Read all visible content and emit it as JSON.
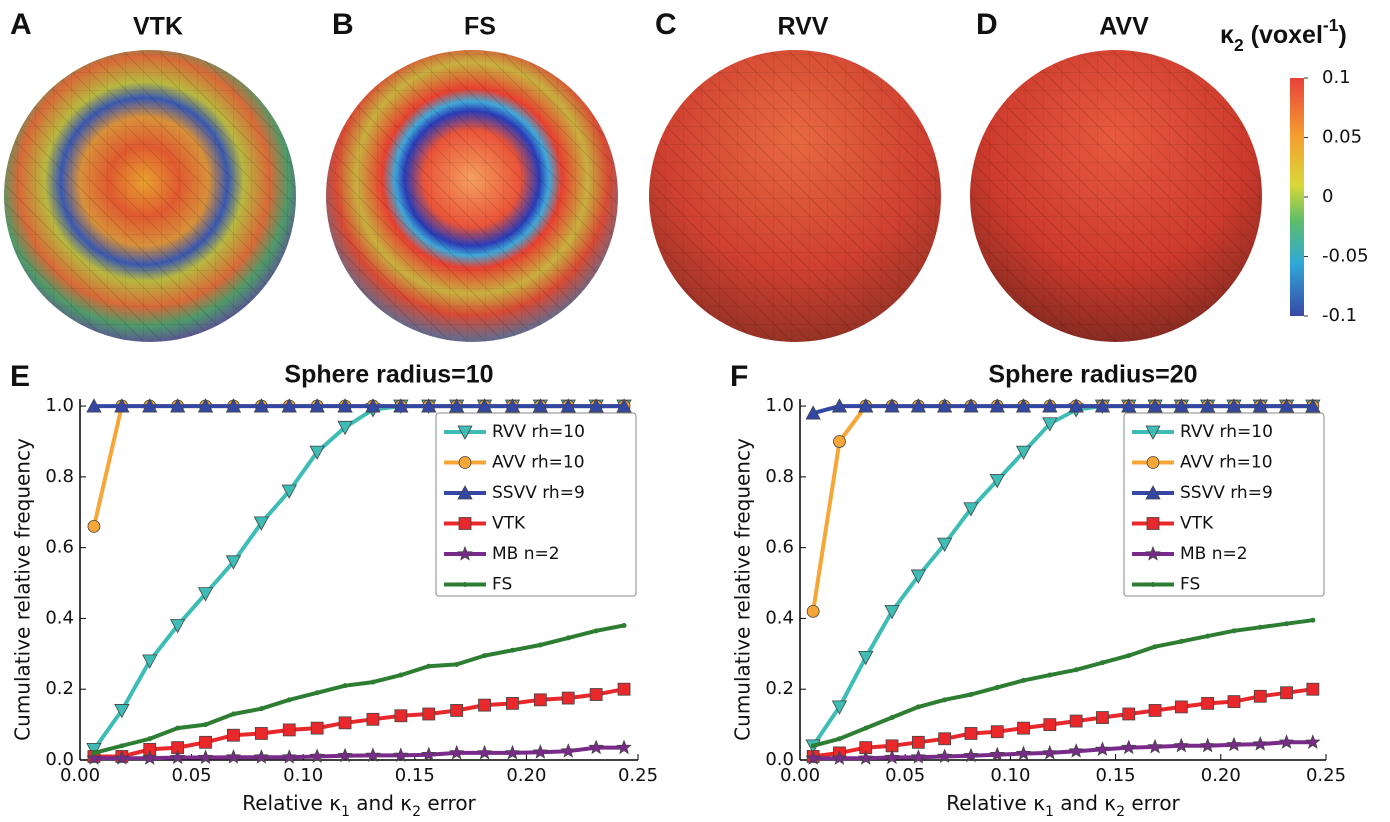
{
  "spheres": [
    {
      "letter": "A",
      "label": "VTK"
    },
    {
      "letter": "B",
      "label": "FS"
    },
    {
      "letter": "C",
      "label": "RVV"
    },
    {
      "letter": "D",
      "label": "AVV"
    }
  ],
  "colorbar": {
    "title": [
      {
        "text": "κ"
      },
      {
        "sub": "2"
      },
      {
        "text": " (voxel"
      },
      {
        "sup": "-1"
      },
      {
        "text": ")"
      }
    ],
    "lim": [
      -0.1,
      0.1
    ],
    "ticks": [
      0.1,
      0.05,
      0,
      -0.05,
      -0.1
    ]
  },
  "chart_data": [
    {
      "type": "line",
      "panel": "E",
      "title": "Sphere radius=10",
      "xlabel": [
        {
          "text": "Relative κ"
        },
        {
          "sub": "1"
        },
        {
          "text": " and κ"
        },
        {
          "sub": "2"
        },
        {
          "text": " error"
        }
      ],
      "ylabel": "Cumulative relative frequency",
      "xlim": [
        0,
        0.25
      ],
      "ylim": [
        0,
        1.02
      ],
      "xticks": [
        {
          "value": 0,
          "label": "0.00"
        },
        {
          "value": 0.05,
          "label": "0.05"
        },
        {
          "value": 0.1,
          "label": "0.10"
        },
        {
          "value": 0.15,
          "label": "0.15"
        },
        {
          "value": 0.2,
          "label": "0.20"
        },
        {
          "value": 0.25,
          "label": "0.25"
        }
      ],
      "yticks": [
        {
          "value": 0,
          "label": "0.0"
        },
        {
          "value": 0.2,
          "label": "0.2"
        },
        {
          "value": 0.4,
          "label": "0.4"
        },
        {
          "value": 0.6,
          "label": "0.6"
        },
        {
          "value": 0.8,
          "label": "0.8"
        },
        {
          "value": 1,
          "label": "1.0"
        }
      ],
      "legend": "upper right",
      "x": [
        0.00625,
        0.01875,
        0.03125,
        0.04375,
        0.05625,
        0.06875,
        0.08125,
        0.09375,
        0.10625,
        0.11875,
        0.13125,
        0.14375,
        0.15625,
        0.16875,
        0.18125,
        0.19375,
        0.20625,
        0.21875,
        0.23125,
        0.24375
      ],
      "series": [
        {
          "name": "RVV rh=10",
          "color": "#3dbdb5",
          "marker": "triangle-down",
          "values": [
            0.03,
            0.14,
            0.28,
            0.38,
            0.47,
            0.56,
            0.67,
            0.76,
            0.87,
            0.94,
            0.99,
            1,
            1,
            1,
            1,
            1,
            1,
            1,
            1,
            1
          ]
        },
        {
          "name": "AVV rh=10",
          "color": "#f5a636",
          "marker": "circle",
          "values": [
            0.66,
            1,
            1,
            1,
            1,
            1,
            1,
            1,
            1,
            1,
            1,
            1,
            1,
            1,
            1,
            1,
            1,
            1,
            1,
            1
          ]
        },
        {
          "name": "SSVV rh=9",
          "color": "#3348a5",
          "marker": "triangle-up",
          "values": [
            1,
            1,
            1,
            1,
            1,
            1,
            1,
            1,
            1,
            1,
            1,
            1,
            1,
            1,
            1,
            1,
            1,
            1,
            1,
            1
          ]
        },
        {
          "name": "VTK",
          "color": "#e8282b",
          "marker": "square",
          "values": [
            0.01,
            0.01,
            0.03,
            0.035,
            0.05,
            0.07,
            0.075,
            0.085,
            0.09,
            0.105,
            0.115,
            0.125,
            0.13,
            0.14,
            0.155,
            0.16,
            0.17,
            0.175,
            0.185,
            0.2
          ]
        },
        {
          "name": "MB n=2",
          "color": "#7a2a8a",
          "marker": "star",
          "values": [
            0.005,
            0.005,
            0.005,
            0.007,
            0.007,
            0.008,
            0.008,
            0.008,
            0.01,
            0.012,
            0.013,
            0.013,
            0.015,
            0.02,
            0.02,
            0.02,
            0.022,
            0.025,
            0.035,
            0.035
          ]
        },
        {
          "name": "FS",
          "color": "#2d7d32",
          "marker": "dot",
          "values": [
            0.02,
            0.04,
            0.06,
            0.09,
            0.1,
            0.13,
            0.145,
            0.17,
            0.19,
            0.21,
            0.22,
            0.24,
            0.265,
            0.27,
            0.295,
            0.31,
            0.325,
            0.345,
            0.365,
            0.38
          ]
        }
      ]
    },
    {
      "type": "line",
      "panel": "F",
      "title": "Sphere radius=20",
      "xlabel": [
        {
          "text": "Relative κ"
        },
        {
          "sub": "1"
        },
        {
          "text": " and κ"
        },
        {
          "sub": "2"
        },
        {
          "text": " error"
        }
      ],
      "ylabel": "Cumulative relative frequency",
      "xlim": [
        0,
        0.25
      ],
      "ylim": [
        0,
        1.02
      ],
      "xticks": [
        {
          "value": 0,
          "label": "0.00"
        },
        {
          "value": 0.05,
          "label": "0.05"
        },
        {
          "value": 0.1,
          "label": "0.10"
        },
        {
          "value": 0.15,
          "label": "0.15"
        },
        {
          "value": 0.2,
          "label": "0.20"
        },
        {
          "value": 0.25,
          "label": "0.25"
        }
      ],
      "yticks": [
        {
          "value": 0,
          "label": "0.0"
        },
        {
          "value": 0.2,
          "label": "0.2"
        },
        {
          "value": 0.4,
          "label": "0.4"
        },
        {
          "value": 0.6,
          "label": "0.6"
        },
        {
          "value": 0.8,
          "label": "0.8"
        },
        {
          "value": 1,
          "label": "1.0"
        }
      ],
      "legend": "upper right",
      "x": [
        0.00625,
        0.01875,
        0.03125,
        0.04375,
        0.05625,
        0.06875,
        0.08125,
        0.09375,
        0.10625,
        0.11875,
        0.13125,
        0.14375,
        0.15625,
        0.16875,
        0.18125,
        0.19375,
        0.20625,
        0.21875,
        0.23125,
        0.24375
      ],
      "series": [
        {
          "name": "RVV rh=10",
          "color": "#3dbdb5",
          "marker": "triangle-down",
          "values": [
            0.04,
            0.15,
            0.29,
            0.42,
            0.52,
            0.61,
            0.71,
            0.79,
            0.87,
            0.95,
            0.99,
            1,
            1,
            1,
            1,
            1,
            1,
            1,
            1,
            1
          ]
        },
        {
          "name": "AVV rh=10",
          "color": "#f5a636",
          "marker": "circle",
          "values": [
            0.42,
            0.9,
            1,
            1,
            1,
            1,
            1,
            1,
            1,
            1,
            1,
            1,
            1,
            1,
            1,
            1,
            1,
            1,
            1,
            1
          ]
        },
        {
          "name": "SSVV rh=9",
          "color": "#3348a5",
          "marker": "triangle-up",
          "values": [
            0.98,
            1,
            1,
            1,
            1,
            1,
            1,
            1,
            1,
            1,
            1,
            1,
            1,
            1,
            1,
            1,
            1,
            1,
            1,
            1
          ]
        },
        {
          "name": "VTK",
          "color": "#e8282b",
          "marker": "square",
          "values": [
            0.01,
            0.02,
            0.035,
            0.04,
            0.05,
            0.06,
            0.075,
            0.08,
            0.09,
            0.1,
            0.11,
            0.12,
            0.13,
            0.14,
            0.15,
            0.16,
            0.165,
            0.18,
            0.19,
            0.2
          ]
        },
        {
          "name": "MB n=2",
          "color": "#7a2a8a",
          "marker": "star",
          "values": [
            0.005,
            0.005,
            0.005,
            0.007,
            0.008,
            0.01,
            0.012,
            0.015,
            0.018,
            0.02,
            0.025,
            0.03,
            0.035,
            0.037,
            0.04,
            0.04,
            0.043,
            0.045,
            0.05,
            0.05
          ]
        },
        {
          "name": "FS",
          "color": "#2d7d32",
          "marker": "dot",
          "values": [
            0.04,
            0.06,
            0.09,
            0.12,
            0.15,
            0.17,
            0.185,
            0.205,
            0.225,
            0.24,
            0.255,
            0.275,
            0.295,
            0.32,
            0.335,
            0.35,
            0.365,
            0.375,
            0.385,
            0.395
          ]
        }
      ]
    }
  ]
}
